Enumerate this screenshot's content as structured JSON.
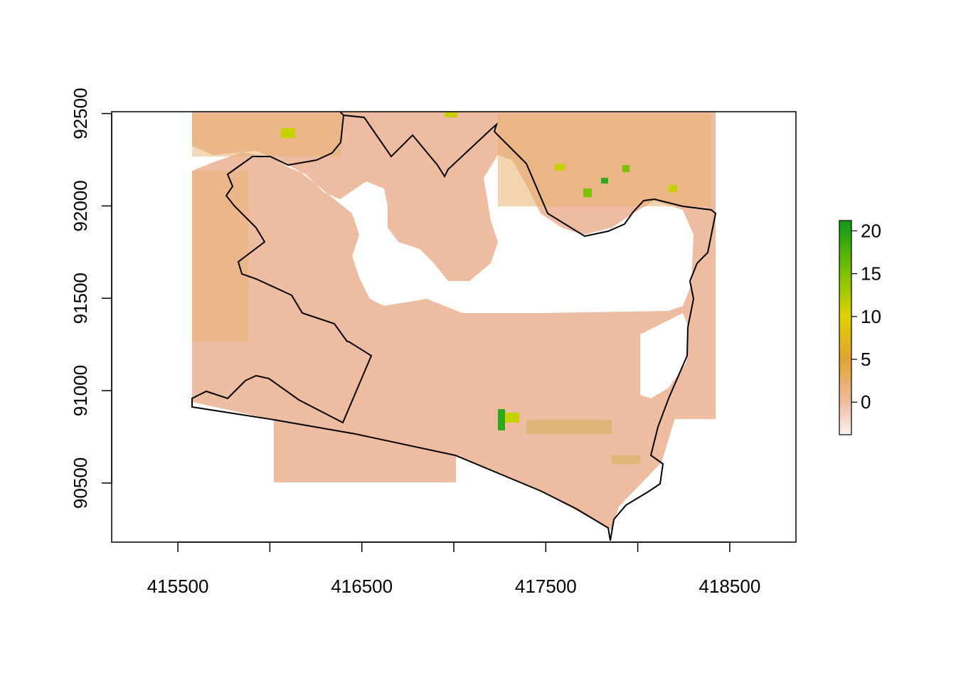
{
  "chart_data": {
    "type": "heatmap",
    "title": "",
    "xlabel": "",
    "ylabel": "",
    "xlim": [
      415140,
      418860
    ],
    "ylim": [
      90180,
      92510
    ],
    "x_ticks": [
      {
        "value": 415500,
        "label": "415500"
      },
      {
        "value": 416000,
        "label": ""
      },
      {
        "value": 416500,
        "label": "416500"
      },
      {
        "value": 417000,
        "label": ""
      },
      {
        "value": 417500,
        "label": "417500"
      },
      {
        "value": 418000,
        "label": ""
      },
      {
        "value": 418500,
        "label": "418500"
      }
    ],
    "y_ticks": [
      {
        "value": 90500,
        "label": "90500"
      },
      {
        "value": 91000,
        "label": "91000"
      },
      {
        "value": 91500,
        "label": "91500"
      },
      {
        "value": 92000,
        "label": "92000"
      },
      {
        "value": 92500,
        "label": "92500"
      }
    ],
    "raster_extent": {
      "xmin": 415590,
      "xmax": 418430,
      "ymin": 90520,
      "ymax": 92510
    },
    "colorbar": {
      "range": [
        -3.8,
        21.2
      ],
      "ticks": [
        {
          "value": 0,
          "label": "0"
        },
        {
          "value": 5,
          "label": "5"
        },
        {
          "value": 10,
          "label": "10"
        },
        {
          "value": 15,
          "label": "15"
        },
        {
          "value": 20,
          "label": "20"
        }
      ],
      "stops": [
        {
          "value": -3.8,
          "color": "#fbf0ef"
        },
        {
          "value": 0,
          "color": "#eebca0"
        },
        {
          "value": 5,
          "color": "#e3a330"
        },
        {
          "value": 10,
          "color": "#e0d100"
        },
        {
          "value": 15,
          "color": "#7cc200"
        },
        {
          "value": 21.2,
          "color": "#0f9a17"
        }
      ]
    },
    "grid": false,
    "legend_position": "right"
  }
}
